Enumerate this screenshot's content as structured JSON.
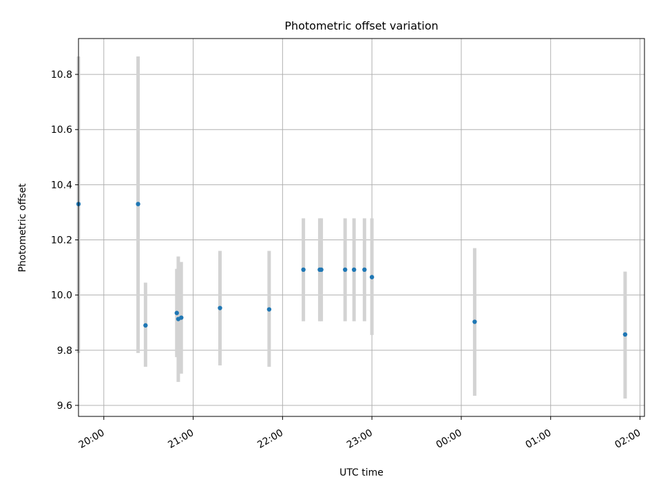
{
  "chart_data": {
    "type": "scatter",
    "title": "Photometric offset variation",
    "xlabel": "UTC time",
    "ylabel": "Photometric offset",
    "x_ticks": [
      "20:00",
      "21:00",
      "22:00",
      "23:00",
      "00:00",
      "01:00",
      "02:00"
    ],
    "y_ticks": [
      "9.6",
      "9.8",
      "10.0",
      "10.2",
      "10.4",
      "10.6",
      "10.8"
    ],
    "x_tick_values": [
      "20:00",
      "21:00",
      "22:00",
      "23:00",
      "00:00",
      "01:00",
      "02:00"
    ],
    "y_tick_values": [
      9.6,
      9.8,
      10.0,
      10.2,
      10.4,
      10.6,
      10.8
    ],
    "xlim": [
      "19:43",
      "02:03"
    ],
    "ylim": [
      9.56,
      10.93
    ],
    "grid": true,
    "series": [
      {
        "x": [
          "19:43",
          "20:23",
          "20:28",
          "20:49",
          "20:50",
          "20:52",
          "21:18",
          "21:51",
          "22:14",
          "22:25",
          "22:26",
          "22:42",
          "22:48",
          "22:55",
          "23:00",
          "00:09",
          "01:50"
        ],
        "y": [
          10.33,
          10.33,
          9.89,
          9.935,
          9.913,
          9.918,
          9.953,
          9.948,
          10.092,
          10.092,
          10.092,
          10.092,
          10.092,
          10.092,
          10.065,
          9.903,
          9.857
        ],
        "y_err_low": [
          9.79,
          9.79,
          9.74,
          9.775,
          9.685,
          9.715,
          9.745,
          9.74,
          9.905,
          9.905,
          9.905,
          9.905,
          9.905,
          9.905,
          9.855,
          9.635,
          9.625
        ],
        "y_err_high": [
          10.865,
          10.865,
          10.045,
          10.095,
          10.14,
          10.12,
          10.16,
          10.16,
          10.278,
          10.278,
          10.278,
          10.278,
          10.278,
          10.278,
          10.278,
          10.17,
          10.085
        ]
      }
    ],
    "colors": {
      "point": "#1f77b4",
      "errorbar": "#d3d3d3",
      "grid": "#b0b0b0"
    }
  }
}
